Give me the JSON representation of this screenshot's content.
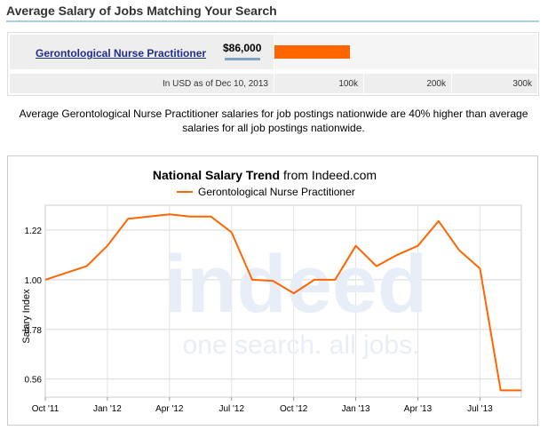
{
  "header": {
    "title": "Average Salary of Jobs Matching Your Search"
  },
  "salary_table": {
    "job_title": "Gerontological Nurse Practitioner",
    "salary": "$86,000",
    "salary_value": 86000,
    "scale_max": 300000,
    "note": "In USD as of Dec 10, 2013",
    "scale_labels": [
      "100k",
      "200k",
      "300k"
    ]
  },
  "description": "Average Gerontological Nurse Practitioner salaries for job postings nationwide are 40% higher than average salaries for all job postings nationwide.",
  "chart": {
    "title_bold": "National Salary Trend",
    "title_rest": "from Indeed.com",
    "watermark_main": "indeed",
    "watermark_sub": "one search. all jobs."
  },
  "colors": {
    "series": "#ff6600",
    "bar": "#ff6600",
    "link": "#1f2e8a"
  },
  "chart_data": {
    "type": "line",
    "title": "National Salary Trend from Indeed.com",
    "xlabel": "",
    "ylabel": "Salary Index",
    "x_ticks": [
      "Oct '11",
      "Jan '12",
      "Apr '12",
      "Jul '12",
      "Oct '12",
      "Jan '13",
      "Apr '13",
      "Jul '13"
    ],
    "y_ticks": [
      "0.56",
      "0.78",
      "1.00",
      "1.22"
    ],
    "ylim": [
      0.48,
      1.33
    ],
    "grid": true,
    "legend": "top",
    "series": [
      {
        "name": "Gerontological Nurse Practitioner",
        "color": "#ff6600",
        "x": [
          "2011-10",
          "2011-11",
          "2011-12",
          "2012-01",
          "2012-02",
          "2012-03",
          "2012-04",
          "2012-05",
          "2012-06",
          "2012-07",
          "2012-08",
          "2012-09",
          "2012-10",
          "2012-11",
          "2012-12",
          "2013-01",
          "2013-02",
          "2013-03",
          "2013-04",
          "2013-05",
          "2013-06",
          "2013-07",
          "2013-08",
          "2013-09"
        ],
        "values": [
          1.0,
          1.03,
          1.06,
          1.15,
          1.27,
          1.28,
          1.29,
          1.28,
          1.28,
          1.21,
          1.0,
          0.995,
          0.94,
          1.0,
          1.0,
          1.15,
          1.06,
          1.11,
          1.15,
          1.26,
          1.13,
          1.05,
          0.51,
          0.51
        ]
      }
    ]
  }
}
